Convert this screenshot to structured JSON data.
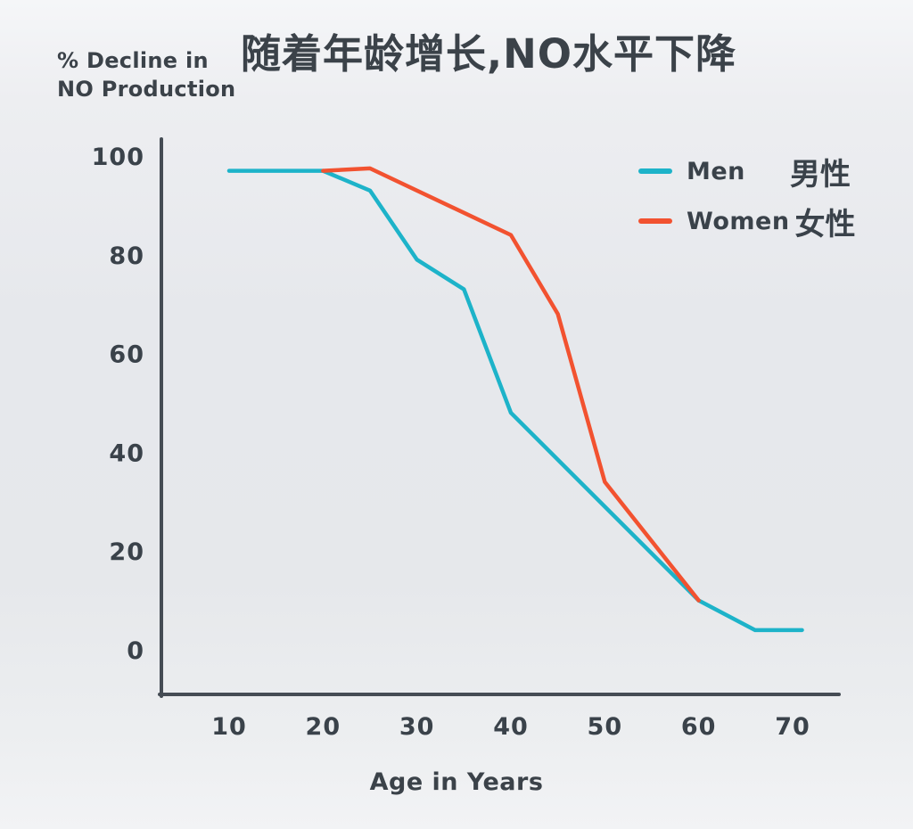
{
  "title": "随着年龄增长,NO水平下降",
  "y_axis_label": "% Decline in\nNO Production",
  "x_axis_label": "Age in Years",
  "chart_data": {
    "type": "line",
    "title": "随着年龄增长,NO水平下降",
    "xlabel": "Age in Years",
    "ylabel": "% Decline in NO Production",
    "xticks": [
      10,
      20,
      30,
      40,
      50,
      60,
      70
    ],
    "yticks": [
      0,
      20,
      40,
      60,
      80,
      100
    ],
    "xlim": [
      2.5,
      75
    ],
    "ylim": [
      0,
      100
    ],
    "grid": false,
    "legend_position": "top-right",
    "series": [
      {
        "name": "Men",
        "cjk": "男性",
        "color": "#1db3c9",
        "points": [
          [
            10,
            97
          ],
          [
            20,
            97
          ],
          [
            25,
            93
          ],
          [
            30,
            79
          ],
          [
            35,
            73
          ],
          [
            40,
            48
          ],
          [
            60,
            10
          ],
          [
            66,
            4
          ],
          [
            71,
            4
          ]
        ]
      },
      {
        "name": "Women",
        "cjk": "女性",
        "color": "#f25230",
        "points": [
          [
            20,
            97
          ],
          [
            25,
            97.5
          ],
          [
            40,
            84
          ],
          [
            45,
            68
          ],
          [
            50,
            34
          ],
          [
            55,
            22
          ],
          [
            60,
            10
          ]
        ]
      }
    ]
  }
}
